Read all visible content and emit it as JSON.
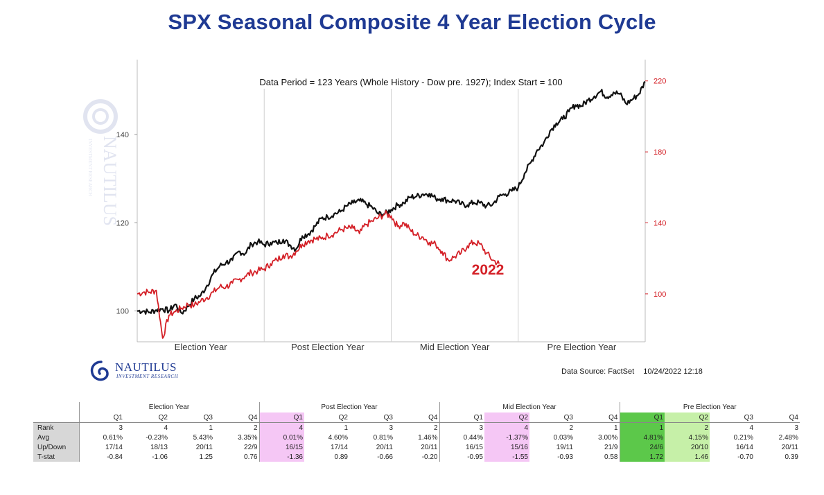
{
  "title": "SPX Seasonal Composite 4 Year Election Cycle",
  "colors": {
    "composite": "#111111",
    "current": "#d42027",
    "title": "#1f3a93",
    "pink": "#f5c7f5",
    "green_strong": "#5cc84a",
    "green_light": "#c6f0a8"
  },
  "chart_data": {
    "type": "line",
    "subtitle": "Data Period = 123 Years (Whole History - Dow pre. 1927); Index Start = 100",
    "x_categories": [
      "Election Year",
      "Post Election Year",
      "Mid Election Year",
      "Pre Election Year"
    ],
    "x_range": [
      0,
      4
    ],
    "y_left": {
      "ticks": [
        "100",
        "120",
        "140"
      ],
      "range": [
        93,
        157
      ]
    },
    "y_right": {
      "ticks": [
        "100",
        "140",
        "180",
        "220"
      ],
      "range": [
        73,
        232
      ]
    },
    "grid": "vertical lines between years",
    "series": [
      {
        "axis": "left",
        "x": [
          0,
          0.05,
          0.1,
          0.15,
          0.2,
          0.25,
          0.3,
          0.35,
          0.4,
          0.45,
          0.5,
          0.55,
          0.6,
          0.65,
          0.7,
          0.75,
          0.8,
          0.85,
          0.9,
          0.95,
          1.0,
          1.05,
          1.1,
          1.15,
          1.2,
          1.25,
          1.3,
          1.35,
          1.4,
          1.45,
          1.5,
          1.55,
          1.6,
          1.65,
          1.7,
          1.75,
          1.8,
          1.85,
          1.9,
          1.95,
          2.0,
          2.05,
          2.1,
          2.15,
          2.2,
          2.25,
          2.3,
          2.35,
          2.4,
          2.45,
          2.5,
          2.55,
          2.6,
          2.65,
          2.7,
          2.75,
          2.8,
          2.85,
          2.9,
          2.95,
          3.0,
          3.05,
          3.1,
          3.15,
          3.2,
          3.25,
          3.3,
          3.35,
          3.4,
          3.45,
          3.5,
          3.55,
          3.6,
          3.65,
          3.7,
          3.75,
          3.8,
          3.85,
          3.9,
          3.95,
          4.0
        ],
        "y": [
          100,
          100,
          99.7,
          100.2,
          100.5,
          100,
          101.5,
          99.5,
          101,
          102.8,
          103.5,
          105.8,
          108.5,
          110.2,
          111,
          111.5,
          113.5,
          113,
          115.2,
          115.7,
          115,
          115.5,
          115.4,
          116.2,
          115,
          114,
          117,
          117.5,
          119.2,
          121,
          121.3,
          122,
          122.5,
          123.8,
          124.5,
          125,
          124.3,
          123.5,
          122,
          122,
          123,
          124,
          124.5,
          125.8,
          126,
          126.5,
          126.6,
          125.5,
          125.5,
          125,
          125,
          124.2,
          124,
          124.6,
          124.5,
          123.8,
          124.2,
          126,
          126.5,
          127.2,
          128,
          131.2,
          133.7,
          136.5,
          138,
          140.8,
          142.6,
          143.5,
          145.2,
          146.7,
          146.5,
          147.8,
          148.7,
          149.8,
          148.5,
          149.6,
          149.2,
          147,
          148,
          149.2,
          152
        ]
      },
      {
        "name": "2022",
        "axis": "right",
        "x": [
          0,
          0.05,
          0.1,
          0.15,
          0.2,
          0.25,
          0.3,
          0.35,
          0.4,
          0.45,
          0.5,
          0.55,
          0.6,
          0.65,
          0.7,
          0.75,
          0.8,
          0.85,
          0.9,
          0.95,
          1.0,
          1.05,
          1.1,
          1.15,
          1.2,
          1.25,
          1.3,
          1.35,
          1.4,
          1.45,
          1.5,
          1.55,
          1.6,
          1.65,
          1.7,
          1.75,
          1.8,
          1.85,
          1.9,
          1.95,
          2.0,
          2.05,
          2.1,
          2.15,
          2.2,
          2.25,
          2.3,
          2.35,
          2.4,
          2.45,
          2.5,
          2.55,
          2.6,
          2.65,
          2.7,
          2.75,
          2.8,
          2.85
        ],
        "y": [
          100,
          101,
          101,
          102,
          75,
          88,
          90,
          92,
          94,
          93.6,
          96,
          98,
          101,
          104,
          104,
          106,
          108,
          110,
          112,
          113,
          114,
          117,
          119,
          122,
          121,
          124,
          128,
          130,
          131,
          131,
          133,
          134,
          136,
          137,
          137,
          134,
          139,
          141,
          143,
          145,
          144,
          138,
          140,
          136,
          133,
          132,
          129,
          128,
          124,
          119,
          121,
          123,
          127,
          129,
          128,
          123,
          119,
          117
        ]
      }
    ]
  },
  "logo": {
    "brand": "NAUTILUS",
    "tagline": "INVESTMENT RESEARCH"
  },
  "source": {
    "label": "Data Source: FactSet",
    "timestamp": "10/24/2022 12:18"
  },
  "stats": {
    "groups": [
      "Election Year",
      "Post Election Year",
      "Mid Election Year",
      "Pre Election Year"
    ],
    "quarters": [
      "Q1",
      "Q2",
      "Q3",
      "Q4",
      "Q1",
      "Q2",
      "Q3",
      "Q4",
      "Q1",
      "Q2",
      "Q3",
      "Q4",
      "Q1",
      "Q2",
      "Q3",
      "Q4"
    ],
    "rows": [
      {
        "label": "Rank",
        "values": [
          "3",
          "4",
          "1",
          "2",
          "4",
          "1",
          "3",
          "2",
          "3",
          "4",
          "2",
          "1",
          "1",
          "2",
          "4",
          "3"
        ]
      },
      {
        "label": "Avg",
        "values": [
          "0.61%",
          "-0.23%",
          "5.43%",
          "3.35%",
          "0.01%",
          "4.60%",
          "0.81%",
          "1.46%",
          "0.44%",
          "-1.37%",
          "0.03%",
          "3.00%",
          "4.81%",
          "4.15%",
          "0.21%",
          "2.48%"
        ]
      },
      {
        "label": "Up/Down",
        "values": [
          "17/14",
          "18/13",
          "20/11",
          "22/9",
          "16/15",
          "17/14",
          "20/11",
          "20/11",
          "16/15",
          "15/16",
          "19/11",
          "21/9",
          "24/6",
          "20/10",
          "16/14",
          "20/11"
        ]
      },
      {
        "label": "T-stat",
        "values": [
          "-0.84",
          "-1.06",
          "1.25",
          "0.76",
          "-1.36",
          "0.89",
          "-0.66",
          "-0.20",
          "-0.95",
          "-1.55",
          "-0.93",
          "0.58",
          "1.72",
          "1.46",
          "-0.70",
          "0.39"
        ]
      }
    ]
  }
}
